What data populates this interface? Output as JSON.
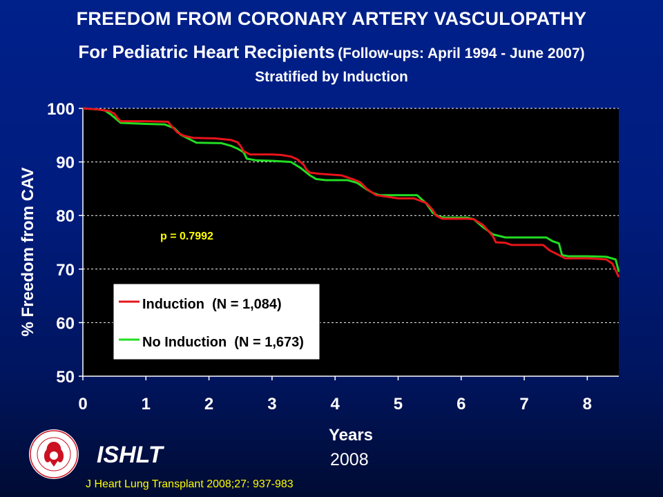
{
  "header": {
    "title_line1": "FREEDOM FROM CORONARY ARTERY VASCULOPATHY",
    "title_line2_main": "For Pediatric Heart Recipients",
    "title_line2_sub": "(Follow-ups: April 1994 - June 2007)",
    "title_line3": "Stratified by Induction"
  },
  "footer": {
    "org": "ISHLT",
    "year": "2008",
    "citation": "J Heart Lung Transplant 2008;27: 937-983"
  },
  "colors": {
    "background": "#001c7e",
    "plot_area": "#000000",
    "induction": "#e8141a",
    "no_induction": "#22dd22",
    "annotation": "#ffff00",
    "gridline": "#ffffff"
  },
  "chart_data": {
    "type": "line",
    "title": "FREEDOM FROM CORONARY ARTERY VASCULOPATHY",
    "xlabel": "Years",
    "ylabel": "% Freedom from CAV",
    "xlim": [
      0,
      8.5
    ],
    "ylim": [
      50,
      100
    ],
    "xticks": [
      "0",
      "1",
      "2",
      "3",
      "4",
      "5",
      "6",
      "7",
      "8"
    ],
    "yticks": [
      "50",
      "60",
      "70",
      "80",
      "90",
      "100"
    ],
    "grid": "horizontal dashed",
    "legend_position": "bottom-left",
    "annotation": "p = 0.7992",
    "series": [
      {
        "name": "Induction  (N = 1,084)",
        "color": "#e8141a",
        "x": [
          0,
          0.25,
          0.42,
          0.5,
          0.55,
          0.6,
          1.0,
          1.35,
          1.4,
          1.5,
          1.6,
          1.75,
          2.1,
          2.35,
          2.45,
          2.5,
          2.55,
          2.65,
          3.0,
          3.15,
          3.3,
          3.4,
          3.5,
          3.55,
          3.6,
          3.75,
          4.1,
          4.3,
          4.4,
          4.5,
          4.65,
          5.0,
          5.25,
          5.45,
          5.55,
          5.6,
          5.7,
          6.1,
          6.2,
          6.35,
          6.5,
          6.55,
          6.7,
          6.8,
          7.3,
          7.4,
          7.55,
          7.65,
          8.0,
          8.3,
          8.4,
          8.5
        ],
        "y": [
          100,
          99.8,
          99.5,
          99.0,
          98.2,
          97.6,
          97.6,
          97.5,
          96.8,
          95.5,
          94.9,
          94.5,
          94.4,
          94.1,
          93.7,
          93.0,
          92.0,
          91.4,
          91.4,
          91.3,
          91.0,
          90.5,
          89.5,
          88.5,
          88.0,
          87.8,
          87.5,
          86.7,
          86.2,
          85.0,
          83.8,
          83.2,
          83.2,
          82.3,
          81.0,
          80.0,
          79.4,
          79.4,
          79.3,
          78.2,
          76.2,
          75.0,
          74.9,
          74.5,
          74.5,
          73.5,
          72.6,
          72.0,
          72.0,
          71.8,
          71.0,
          68.5
        ]
      },
      {
        "name": "No Induction  (N = 1,673)",
        "color": "#22dd22",
        "x": [
          0,
          0.25,
          0.35,
          0.45,
          0.55,
          0.6,
          1.0,
          1.3,
          1.45,
          1.55,
          1.7,
          1.8,
          2.2,
          2.35,
          2.45,
          2.55,
          2.6,
          2.75,
          3.0,
          3.3,
          3.45,
          3.6,
          3.7,
          3.85,
          4.2,
          4.35,
          4.5,
          4.6,
          4.7,
          5.0,
          5.3,
          5.45,
          5.55,
          5.65,
          5.75,
          6.1,
          6.2,
          6.35,
          6.5,
          6.6,
          6.7,
          7.0,
          7.35,
          7.45,
          7.55,
          7.6,
          7.7,
          8.0,
          8.3,
          8.45,
          8.5
        ],
        "y": [
          100,
          99.8,
          99.6,
          98.8,
          97.8,
          97.3,
          97.1,
          97.0,
          96.3,
          95.1,
          94.2,
          93.6,
          93.5,
          93.0,
          92.5,
          91.8,
          90.6,
          90.3,
          90.2,
          90.0,
          88.9,
          87.5,
          86.8,
          86.6,
          86.6,
          86.1,
          84.9,
          84.2,
          83.8,
          83.8,
          83.8,
          82.2,
          80.5,
          79.8,
          79.6,
          79.6,
          79.3,
          77.8,
          76.5,
          76.2,
          75.9,
          75.9,
          75.9,
          75.2,
          74.8,
          72.6,
          72.4,
          72.4,
          72.3,
          71.8,
          69.5
        ]
      }
    ]
  }
}
